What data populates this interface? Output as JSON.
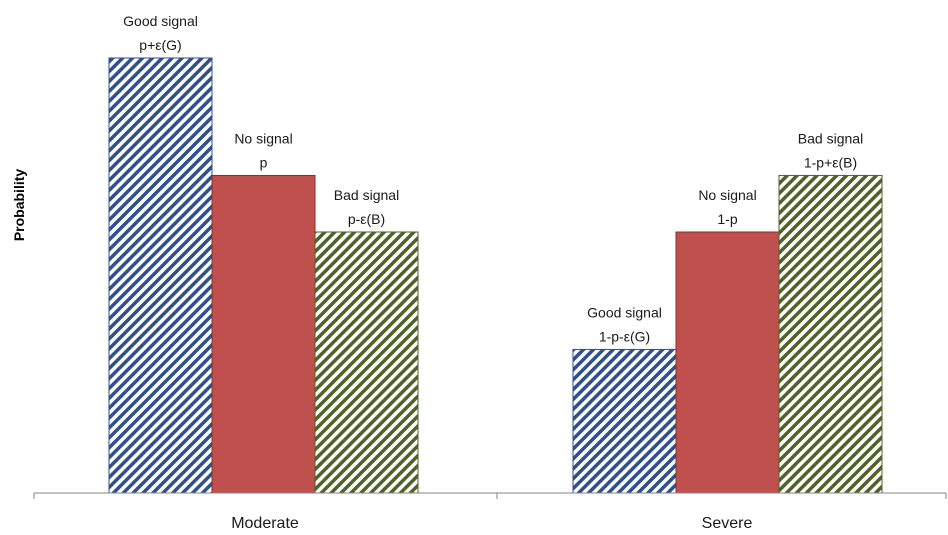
{
  "chart_data": {
    "type": "bar",
    "title": "",
    "xlabel": "",
    "ylabel": "Probability",
    "ylim": [
      0,
      1
    ],
    "grid": false,
    "legend": "none",
    "categories": [
      "Moderate",
      "Severe"
    ],
    "series": [
      {
        "key": "good",
        "color": "#2f4f8f",
        "pattern": "diagonal-hatch",
        "values": [
          1.0,
          0.33
        ],
        "labels": [
          [
            "Good signal",
            "p+ε(G)"
          ],
          [
            "Good signal",
            "1-p-ε(G)"
          ]
        ]
      },
      {
        "key": "none",
        "color": "#c0504d",
        "pattern": "solid",
        "values": [
          0.73,
          0.6
        ],
        "labels": [
          [
            "No signal",
            "p"
          ],
          [
            "No signal",
            "1-p"
          ]
        ]
      },
      {
        "key": "bad",
        "color": "#4f6228",
        "pattern": "diagonal-hatch",
        "values": [
          0.6,
          0.73
        ],
        "labels": [
          [
            "Bad signal",
            "p-ε(B)"
          ],
          [
            "Bad signal",
            "1-p+ε(B)"
          ]
        ]
      }
    ]
  }
}
